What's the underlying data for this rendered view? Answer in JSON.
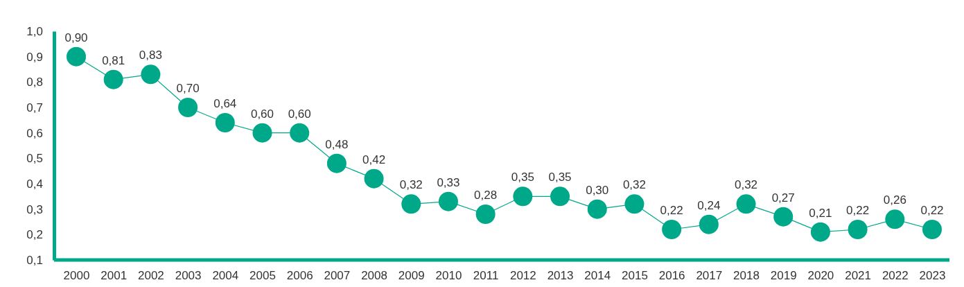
{
  "chart_data": {
    "type": "line",
    "categories": [
      "2000",
      "2001",
      "2002",
      "2003",
      "2004",
      "2005",
      "2006",
      "2007",
      "2008",
      "2009",
      "2010",
      "2011",
      "2012",
      "2013",
      "2014",
      "2015",
      "2016",
      "2017",
      "2018",
      "2019",
      "2020",
      "2021",
      "2022",
      "2023"
    ],
    "series": [
      {
        "color": "#00a88a",
        "values": [
          0.9,
          0.81,
          0.83,
          0.7,
          0.64,
          0.6,
          0.6,
          0.48,
          0.42,
          0.32,
          0.33,
          0.28,
          0.35,
          0.35,
          0.3,
          0.32,
          0.22,
          0.24,
          0.32,
          0.27,
          0.21,
          0.22,
          0.26,
          0.22
        ],
        "value_labels": [
          "0,90",
          "0,81",
          "0,83",
          "0,70",
          "0,64",
          "0,60",
          "0,60",
          "0,48",
          "0,42",
          "0,32",
          "0,33",
          "0,28",
          "0,35",
          "0,35",
          "0,30",
          "0,32",
          "0,22",
          "0,24",
          "0,32",
          "0,27",
          "0,21",
          "0,22",
          "0,26",
          "0,22"
        ]
      }
    ],
    "ylim": [
      0.1,
      1.0
    ],
    "yticks": [
      {
        "value": 0.1,
        "label": "0,1"
      },
      {
        "value": 0.2,
        "label": "0,2"
      },
      {
        "value": 0.3,
        "label": "0,3"
      },
      {
        "value": 0.4,
        "label": "0,4"
      },
      {
        "value": 0.5,
        "label": "0,5"
      },
      {
        "value": 0.6,
        "label": "0,6"
      },
      {
        "value": 0.7,
        "label": "0,7"
      },
      {
        "value": 0.8,
        "label": "0,8"
      },
      {
        "value": 0.9,
        "label": "0,9"
      },
      {
        "value": 1.0,
        "label": "1,0"
      }
    ],
    "grid": false,
    "marker": "circle",
    "line_style": "solid"
  }
}
